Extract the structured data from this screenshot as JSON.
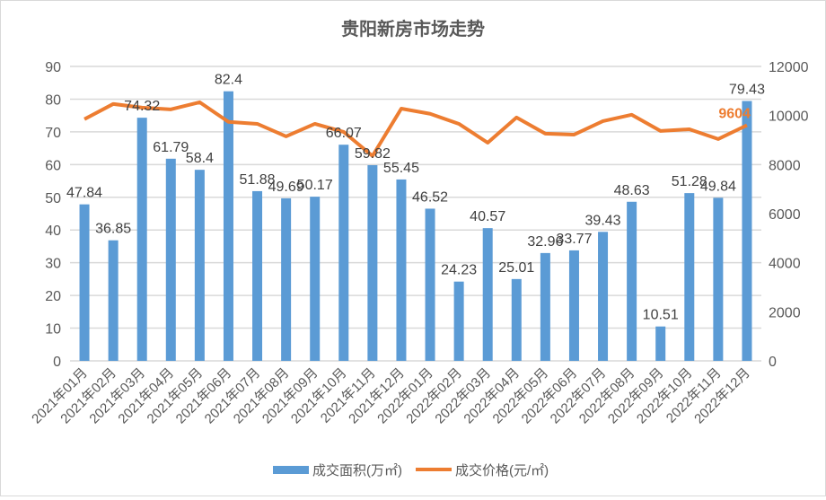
{
  "chart_data": {
    "type": "bar+line",
    "title": "贵阳新房市场走势",
    "categories": [
      "2021年01月",
      "2021年02月",
      "2021年03月",
      "2021年04月",
      "2021年05月",
      "2021年06月",
      "2021年07月",
      "2021年08月",
      "2021年09月",
      "2021年10月",
      "2021年11月",
      "2021年12月",
      "2022年01月",
      "2022年02月",
      "2022年03月",
      "2022年04月",
      "2022年05月",
      "2022年06月",
      "2022年07月",
      "2022年08月",
      "2022年09月",
      "2022年10月",
      "2022年11月",
      "2022年12月"
    ],
    "series": [
      {
        "name": "成交面积(万㎡)",
        "type": "bar",
        "axis": "left",
        "color": "#5b9bd5",
        "values": [
          47.84,
          36.85,
          74.32,
          61.79,
          58.4,
          82.4,
          51.88,
          49.69,
          50.17,
          66.07,
          59.82,
          55.45,
          46.52,
          24.23,
          40.57,
          25.01,
          32.96,
          33.77,
          39.43,
          48.63,
          10.51,
          51.28,
          49.84,
          79.43
        ]
      },
      {
        "name": "成交价格(元/㎡)",
        "type": "line",
        "axis": "right",
        "color": "#ed7d31",
        "values": [
          9850,
          10470,
          10320,
          10250,
          10540,
          9740,
          9660,
          9150,
          9660,
          9330,
          8350,
          10280,
          10070,
          9660,
          8890,
          9920,
          9260,
          9220,
          9770,
          10030,
          9370,
          9440,
          9040,
          9604
        ],
        "labeled_point": {
          "category": "2022年12月",
          "label": "9604"
        }
      }
    ],
    "y_left": {
      "min": 0,
      "max": 90,
      "ticks": [
        "0",
        "10",
        "20",
        "30",
        "40",
        "50",
        "60",
        "70",
        "80",
        "90"
      ]
    },
    "y_right": {
      "min": 0,
      "max": 12000,
      "ticks": [
        "0",
        "2000",
        "4000",
        "6000",
        "8000",
        "10000",
        "12000"
      ]
    },
    "grid": true,
    "legend": "bottom"
  }
}
